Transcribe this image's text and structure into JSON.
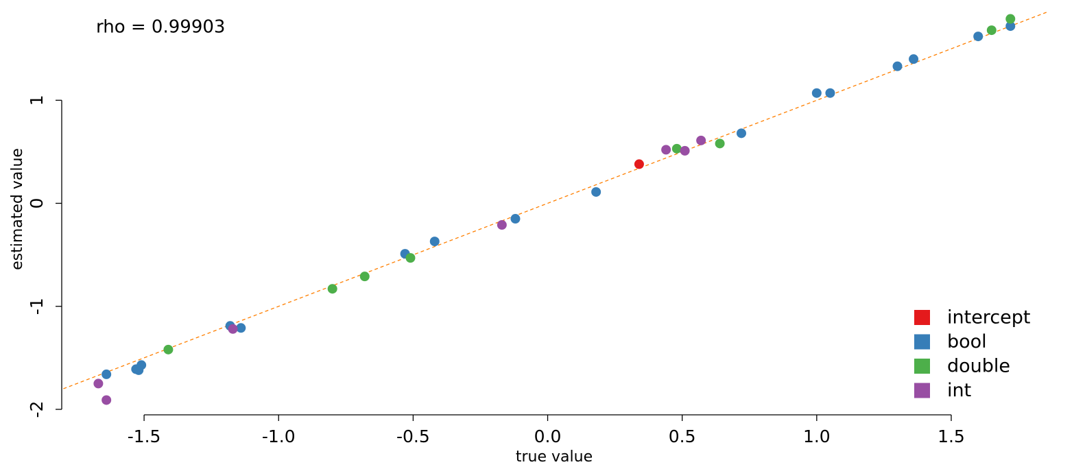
{
  "chart_data": {
    "type": "scatter",
    "annotation": "rho = 0.99903",
    "x_label": "true value",
    "y_label": "estimated value",
    "xlim": [
      -1.8,
      1.86
    ],
    "ylim": [
      -2,
      1.97
    ],
    "xticks": [
      {
        "value": -1.5,
        "label": "-1.5"
      },
      {
        "value": -1,
        "label": "-1.0"
      },
      -0.5,
      {
        "value": 0,
        "label": "0.0"
      },
      0.5,
      {
        "value": 1,
        "label": "1.0"
      },
      {
        "value": 1.5,
        "label": "1.5"
      }
    ],
    "yticks": [
      -2,
      -1,
      0,
      1
    ],
    "legend": "bottom right",
    "series": [
      {
        "name": "intercept",
        "color": "#e41a1c",
        "x": [
          0.34
        ],
        "values": [
          0.38
        ]
      },
      {
        "name": "bool",
        "color": "#377eb8",
        "x": [
          -1.64,
          -1.53,
          -1.52,
          -1.51,
          -1.18,
          -1.14,
          -0.53,
          -0.42,
          -0.12,
          0.18,
          0.72,
          1.0,
          1.05,
          1.3,
          1.36,
          1.6,
          1.72
        ],
        "values": [
          -1.66,
          -1.61,
          -1.62,
          -1.57,
          -1.19,
          -1.21,
          -0.49,
          -0.37,
          -0.15,
          0.11,
          0.68,
          1.07,
          1.07,
          1.33,
          1.4,
          1.62,
          1.72
        ]
      },
      {
        "name": "double",
        "color": "#4daf4a",
        "x": [
          -1.41,
          -0.8,
          -0.68,
          -0.51,
          0.48,
          0.64,
          1.65,
          1.72
        ],
        "values": [
          -1.42,
          -0.83,
          -0.71,
          -0.53,
          0.53,
          0.58,
          1.68,
          1.79
        ]
      },
      {
        "name": "int",
        "color": "#984ea3",
        "x": [
          -1.67,
          -1.64,
          -1.17,
          -0.17,
          0.44,
          0.51,
          0.57
        ],
        "values": [
          -1.75,
          -1.91,
          -1.22,
          -0.21,
          0.52,
          0.51,
          0.61
        ]
      }
    ]
  }
}
